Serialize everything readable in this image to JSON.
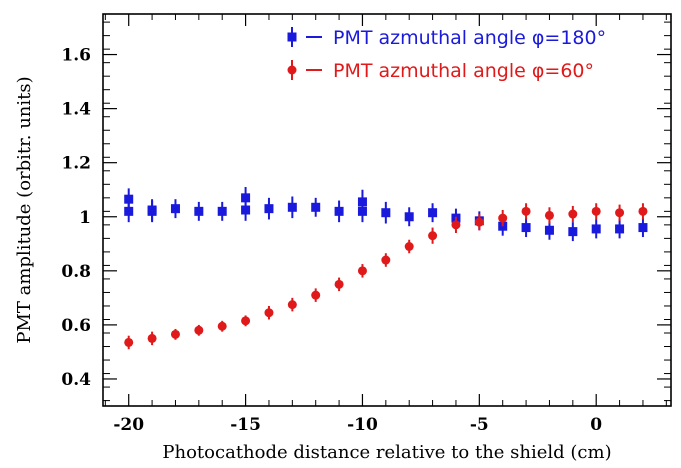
{
  "chart_data": {
    "type": "scatter",
    "title": "",
    "xlabel": "Photocathode distance relative to the shield (cm)",
    "ylabel": "PMT amplitude (orbitr. units)",
    "xlim": [
      -21.1,
      3.2
    ],
    "ylim": [
      0.3,
      1.75
    ],
    "x_ticks": [
      -20,
      -15,
      -10,
      -5,
      0
    ],
    "x_tick_labels": [
      "-20",
      "-15",
      "-10",
      "-5",
      "0"
    ],
    "y_ticks": [
      0.4,
      0.6,
      0.8,
      1.0,
      1.2,
      1.4,
      1.6
    ],
    "y_tick_labels": [
      "0.4",
      "0.6",
      "0.8",
      "1",
      "1.2",
      "1.4",
      "1.6"
    ],
    "legend_position": "top-right",
    "series": [
      {
        "name": "PMT azmuthal angle φ=180°",
        "color": "#1a1adc",
        "marker": "square",
        "points": [
          {
            "x": -20,
            "y": 1.065,
            "err": 0.04
          },
          {
            "x": -20,
            "y": 1.02,
            "err": 0.04
          },
          {
            "x": -19,
            "y": 1.02,
            "err": 0.04
          },
          {
            "x": -19,
            "y": 1.025,
            "err": 0.04
          },
          {
            "x": -18,
            "y": 1.03,
            "err": 0.035
          },
          {
            "x": -17,
            "y": 1.02,
            "err": 0.035
          },
          {
            "x": -16,
            "y": 1.02,
            "err": 0.035
          },
          {
            "x": -15,
            "y": 1.07,
            "err": 0.04
          },
          {
            "x": -15,
            "y": 1.025,
            "err": 0.04
          },
          {
            "x": -14,
            "y": 1.03,
            "err": 0.04
          },
          {
            "x": -13,
            "y": 1.035,
            "err": 0.04
          },
          {
            "x": -12,
            "y": 1.035,
            "err": 0.035
          },
          {
            "x": -11,
            "y": 1.02,
            "err": 0.04
          },
          {
            "x": -10,
            "y": 1.055,
            "err": 0.045
          },
          {
            "x": -10,
            "y": 1.02,
            "err": 0.04
          },
          {
            "x": -9,
            "y": 1.015,
            "err": 0.04
          },
          {
            "x": -8,
            "y": 1.0,
            "err": 0.035
          },
          {
            "x": -7,
            "y": 1.015,
            "err": 0.035
          },
          {
            "x": -6,
            "y": 0.995,
            "err": 0.035
          },
          {
            "x": -5,
            "y": 0.985,
            "err": 0.035
          },
          {
            "x": -4,
            "y": 0.965,
            "err": 0.035
          },
          {
            "x": -3,
            "y": 0.96,
            "err": 0.035
          },
          {
            "x": -2,
            "y": 0.95,
            "err": 0.035
          },
          {
            "x": -1,
            "y": 0.945,
            "err": 0.035
          },
          {
            "x": 0,
            "y": 0.955,
            "err": 0.035
          },
          {
            "x": 1,
            "y": 0.955,
            "err": 0.035
          },
          {
            "x": 2,
            "y": 0.96,
            "err": 0.035
          }
        ]
      },
      {
        "name": "PMT azmuthal angle φ=60°",
        "color": "#e01a1a",
        "marker": "circle",
        "points": [
          {
            "x": -20,
            "y": 0.535,
            "err": 0.025
          },
          {
            "x": -19,
            "y": 0.55,
            "err": 0.025
          },
          {
            "x": -18,
            "y": 0.565,
            "err": 0.02
          },
          {
            "x": -17,
            "y": 0.58,
            "err": 0.02
          },
          {
            "x": -16,
            "y": 0.595,
            "err": 0.02
          },
          {
            "x": -15,
            "y": 0.615,
            "err": 0.02
          },
          {
            "x": -14,
            "y": 0.645,
            "err": 0.025
          },
          {
            "x": -13,
            "y": 0.675,
            "err": 0.025
          },
          {
            "x": -12,
            "y": 0.71,
            "err": 0.025
          },
          {
            "x": -11,
            "y": 0.75,
            "err": 0.025
          },
          {
            "x": -10,
            "y": 0.8,
            "err": 0.025
          },
          {
            "x": -9,
            "y": 0.84,
            "err": 0.025
          },
          {
            "x": -8,
            "y": 0.89,
            "err": 0.025
          },
          {
            "x": -7,
            "y": 0.93,
            "err": 0.03
          },
          {
            "x": -6,
            "y": 0.97,
            "err": 0.03
          },
          {
            "x": -5,
            "y": 0.98,
            "err": 0.03
          },
          {
            "x": -4,
            "y": 0.995,
            "err": 0.03
          },
          {
            "x": -3,
            "y": 1.02,
            "err": 0.03
          },
          {
            "x": -2,
            "y": 1.005,
            "err": 0.03
          },
          {
            "x": -1,
            "y": 1.01,
            "err": 0.03
          },
          {
            "x": 0,
            "y": 1.02,
            "err": 0.03
          },
          {
            "x": 1,
            "y": 1.015,
            "err": 0.03
          },
          {
            "x": 2,
            "y": 1.02,
            "err": 0.03
          }
        ]
      }
    ]
  }
}
